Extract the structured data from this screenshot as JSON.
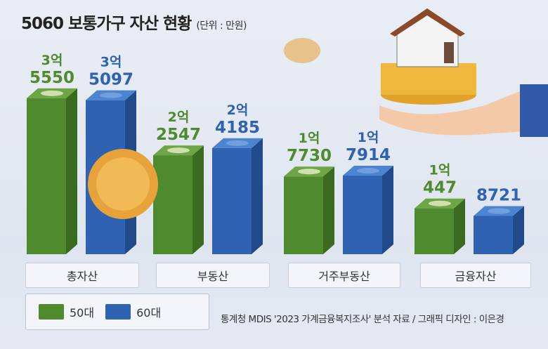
{
  "title": "5060 보통가구 자산 현황",
  "unit": "(단위 : 만원)",
  "source": "통계청 MDIS '2023 가계금융복지조사' 분석 자료  / 그래픽 디자인 : 이은경",
  "legend": {
    "s50": "50대",
    "s60": "60대"
  },
  "chart_data": {
    "type": "bar",
    "title": "5060 보통가구 자산 현황",
    "unit": "만원",
    "categories": [
      "총자산",
      "부동산",
      "거주부동산",
      "금융자산"
    ],
    "series": [
      {
        "name": "50대",
        "color": "#4f8a2e",
        "values": [
          35550,
          22547,
          17730,
          10447
        ],
        "labels": [
          [
            "3억",
            "5550"
          ],
          [
            "2억",
            "2547"
          ],
          [
            "1억",
            "7730"
          ],
          [
            "1억",
            "447"
          ]
        ]
      },
      {
        "name": "60대",
        "color": "#2f62b0",
        "values": [
          35097,
          24185,
          17914,
          8721
        ],
        "labels": [
          [
            "3억",
            "5097"
          ],
          [
            "2억",
            "4185"
          ],
          [
            "1억",
            "7914"
          ],
          [
            "",
            "8721"
          ]
        ]
      }
    ],
    "legend": "bottom-left"
  }
}
